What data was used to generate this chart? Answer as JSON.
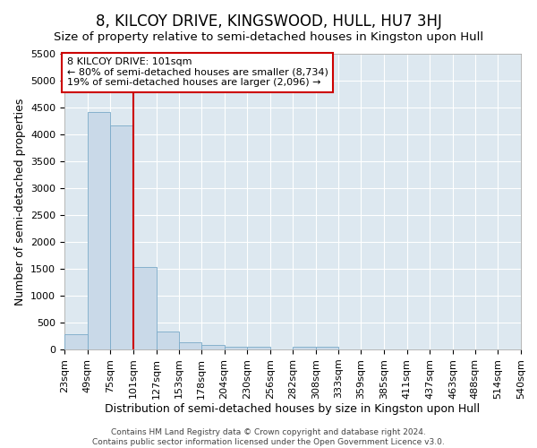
{
  "title": "8, KILCOY DRIVE, KINGSWOOD, HULL, HU7 3HJ",
  "subtitle": "Size of property relative to semi-detached houses in Kingston upon Hull",
  "xlabel": "Distribution of semi-detached houses by size in Kingston upon Hull",
  "ylabel": "Number of semi-detached properties",
  "footer_line1": "Contains HM Land Registry data © Crown copyright and database right 2024.",
  "footer_line2": "Contains public sector information licensed under the Open Government Licence v3.0.",
  "annotation_title": "8 KILCOY DRIVE: 101sqm",
  "annotation_line1": "← 80% of semi-detached houses are smaller (8,734)",
  "annotation_line2": "19% of semi-detached houses are larger (2,096) →",
  "property_size": 101,
  "bar_color": "#c9d9e8",
  "bar_edge_color": "#7aaac8",
  "vline_color": "#cc0000",
  "annotation_box_edge_color": "#cc0000",
  "background_color": "#ffffff",
  "plot_bg_color": "#dde8f0",
  "grid_color": "#ffffff",
  "bins": [
    23,
    49,
    75,
    101,
    127,
    153,
    178,
    204,
    230,
    256,
    282,
    308,
    333,
    359,
    385,
    411,
    437,
    463,
    488,
    514,
    540
  ],
  "values": [
    290,
    4420,
    4170,
    1540,
    330,
    135,
    80,
    55,
    55,
    0,
    55,
    55,
    0,
    0,
    0,
    0,
    0,
    0,
    0,
    0
  ],
  "ylim": [
    0,
    5500
  ],
  "yticks": [
    0,
    500,
    1000,
    1500,
    2000,
    2500,
    3000,
    3500,
    4000,
    4500,
    5000,
    5500
  ],
  "title_fontsize": 12,
  "subtitle_fontsize": 9.5,
  "label_fontsize": 9,
  "tick_fontsize": 8,
  "annotation_fontsize": 8,
  "footer_fontsize": 6.5
}
